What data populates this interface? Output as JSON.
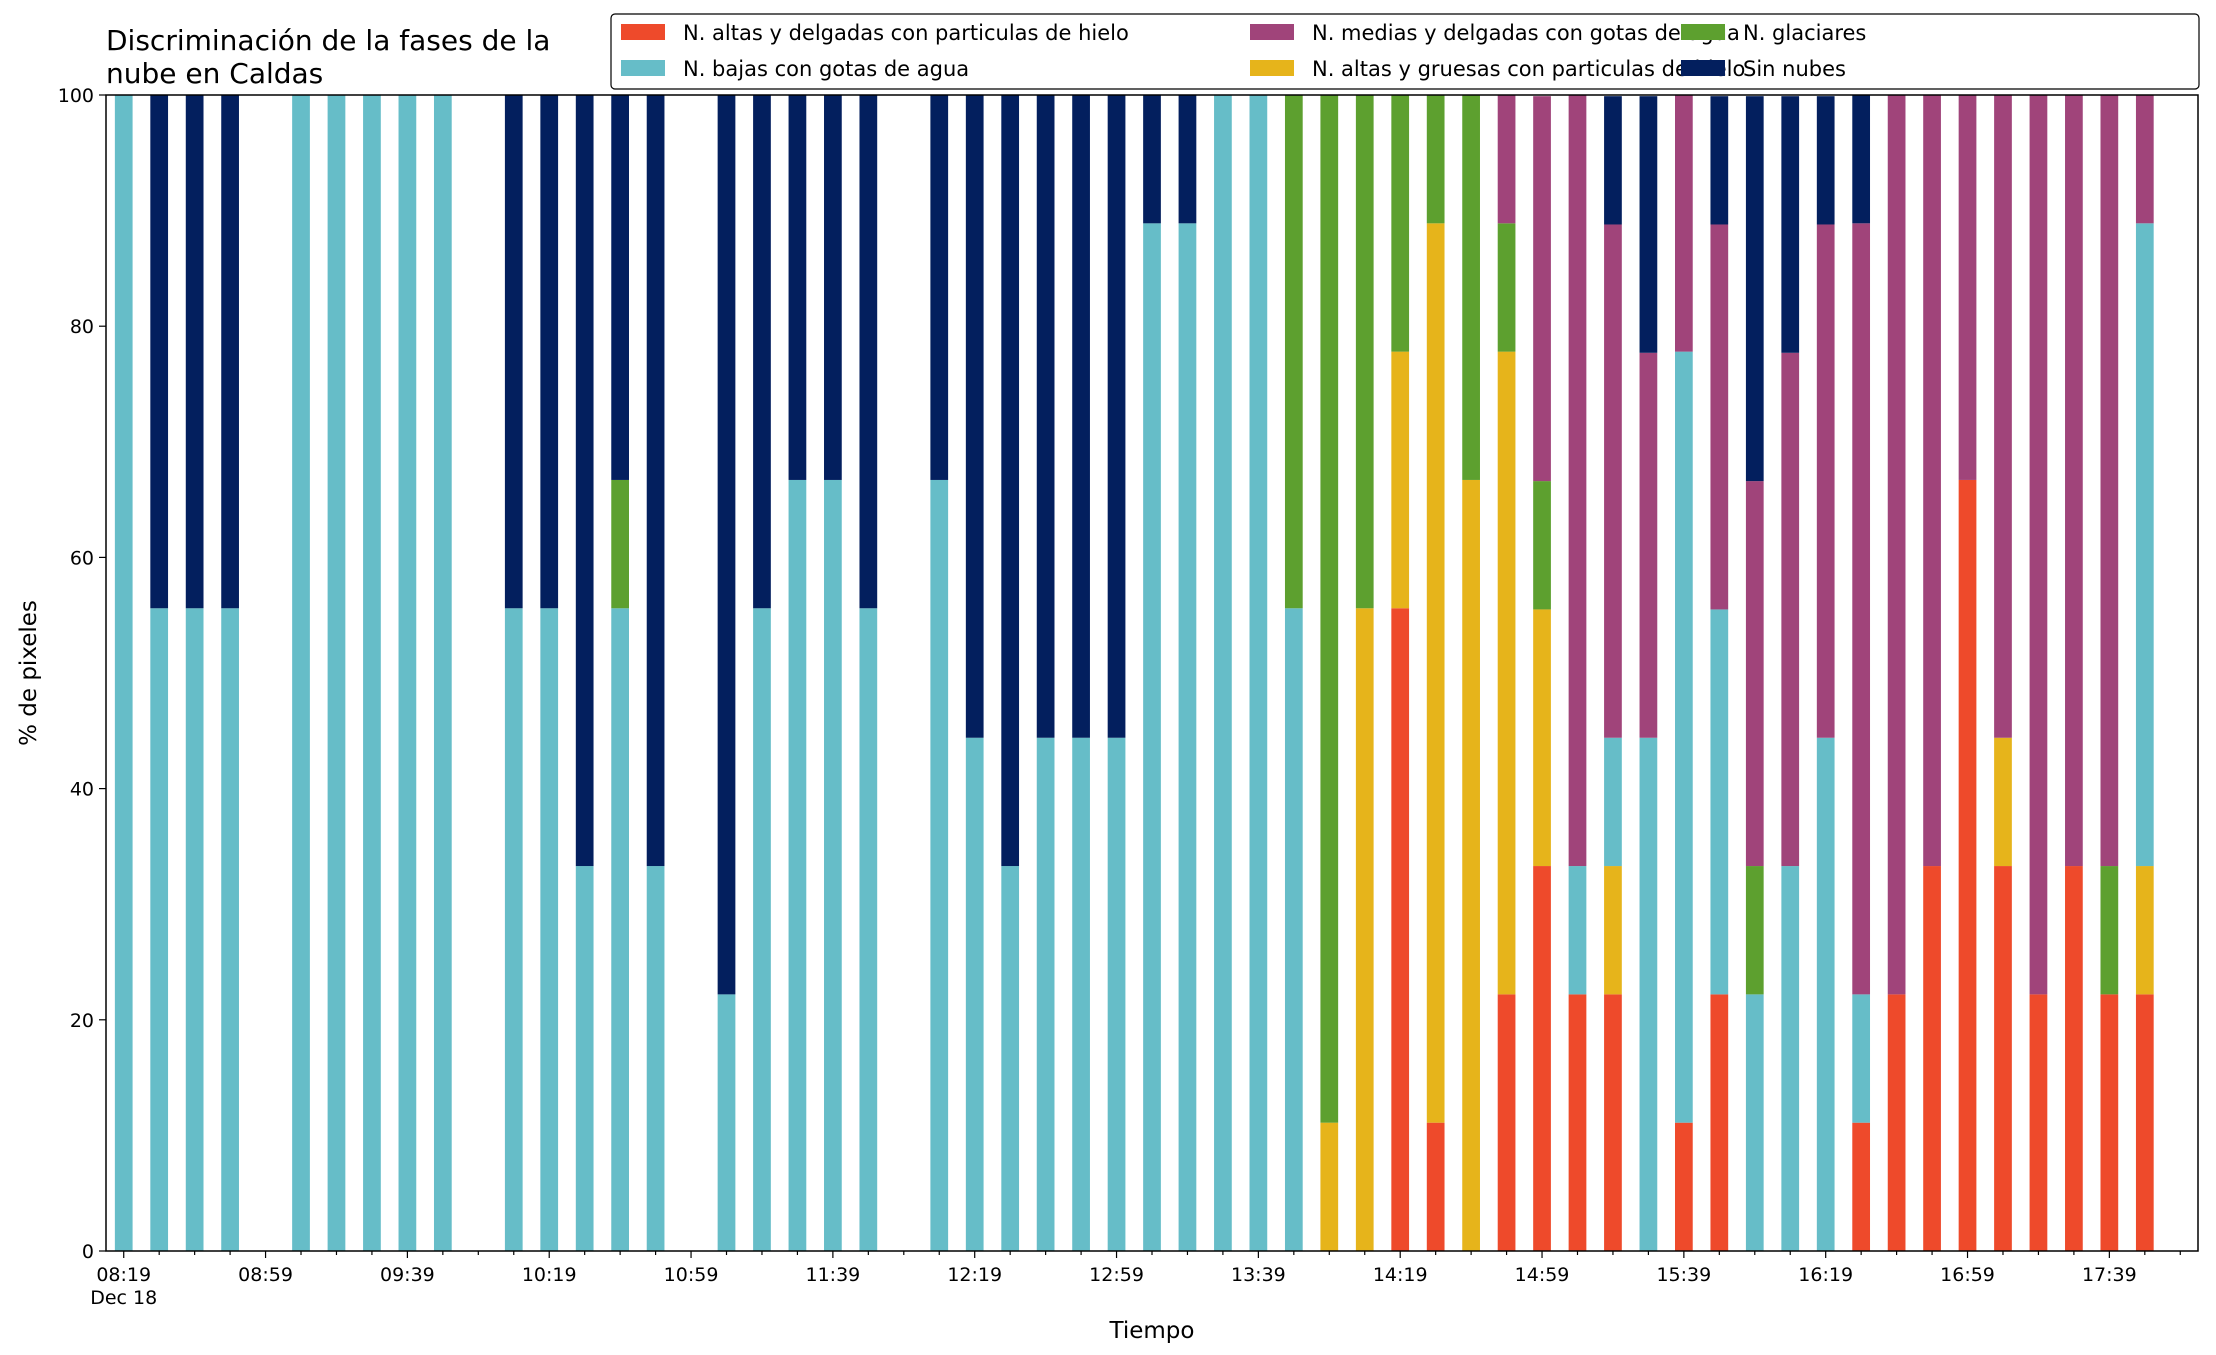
{
  "chart_data": {
    "type": "bar",
    "stacked": true,
    "title_lines": [
      "Discriminación de la fases de la",
      "nube en Caldas"
    ],
    "xlabel": "Tiempo",
    "ylabel": "% de pixeles",
    "ylim": [
      0,
      100
    ],
    "yticks": [
      "0",
      "20",
      "40",
      "60",
      "80",
      "100"
    ],
    "x_start": "08:19",
    "x_step_minutes": 10,
    "x_slots": 59,
    "xtick_labels": [
      {
        "slot": 0,
        "label": "08:19",
        "sublabel": "Dec 18"
      },
      {
        "slot": 4,
        "label": "08:59"
      },
      {
        "slot": 8,
        "label": "09:39"
      },
      {
        "slot": 12,
        "label": "10:19"
      },
      {
        "slot": 16,
        "label": "10:59"
      },
      {
        "slot": 20,
        "label": "11:39"
      },
      {
        "slot": 24,
        "label": "12:19"
      },
      {
        "slot": 28,
        "label": "12:59"
      },
      {
        "slot": 32,
        "label": "13:39"
      },
      {
        "slot": 36,
        "label": "14:19"
      },
      {
        "slot": 40,
        "label": "14:59"
      },
      {
        "slot": 44,
        "label": "15:39"
      },
      {
        "slot": 48,
        "label": "16:19"
      },
      {
        "slot": 52,
        "label": "16:59"
      },
      {
        "slot": 56,
        "label": "17:39"
      }
    ],
    "series": [
      {
        "name": "N. altas y delgadas con particulas de hielo",
        "color": "#ee4a2b"
      },
      {
        "name": "N. altas y gruesas con particulas de hielo",
        "color": "#e6b41b"
      },
      {
        "name": "N. bajas con gotas de agua",
        "color": "#66bdc8"
      },
      {
        "name": "N. glaciares",
        "color": "#5da02f"
      },
      {
        "name": "N. medias y delgadas con gotas de agua",
        "color": "#a0447a"
      },
      {
        "name": "Sin nubes",
        "color": "#031f5e"
      }
    ],
    "legend_order": [
      0,
      2,
      4,
      1,
      3,
      5
    ],
    "legend_position": "top-right",
    "bars": [
      {
        "slot": 0,
        "values": [
          0,
          0,
          100,
          0,
          0,
          0
        ]
      },
      {
        "slot": 1,
        "values": [
          0,
          0,
          55.6,
          0,
          0,
          44.4
        ]
      },
      {
        "slot": 2,
        "values": [
          0,
          0,
          55.6,
          0,
          0,
          44.4
        ]
      },
      {
        "slot": 3,
        "values": [
          0,
          0,
          55.6,
          0,
          0,
          44.4
        ]
      },
      {
        "slot": 5,
        "values": [
          0,
          0,
          100,
          0,
          0,
          0
        ]
      },
      {
        "slot": 6,
        "values": [
          0,
          0,
          100,
          0,
          0,
          0
        ]
      },
      {
        "slot": 7,
        "values": [
          0,
          0,
          100,
          0,
          0,
          0
        ]
      },
      {
        "slot": 8,
        "values": [
          0,
          0,
          100,
          0,
          0,
          0
        ]
      },
      {
        "slot": 9,
        "values": [
          0,
          0,
          100,
          0,
          0,
          0
        ]
      },
      {
        "slot": 11,
        "values": [
          0,
          0,
          55.6,
          0,
          0,
          44.4
        ]
      },
      {
        "slot": 12,
        "values": [
          0,
          0,
          55.6,
          0,
          0,
          44.4
        ]
      },
      {
        "slot": 13,
        "values": [
          0,
          0,
          33.3,
          0,
          0,
          66.7
        ]
      },
      {
        "slot": 14,
        "values": [
          0,
          0,
          55.6,
          11.1,
          0,
          33.3
        ]
      },
      {
        "slot": 15,
        "values": [
          0,
          0,
          33.3,
          0,
          0,
          66.7
        ]
      },
      {
        "slot": 17,
        "values": [
          0,
          0,
          22.2,
          0,
          0,
          77.8
        ]
      },
      {
        "slot": 18,
        "values": [
          0,
          0,
          55.6,
          0,
          0,
          44.4
        ]
      },
      {
        "slot": 19,
        "values": [
          0,
          0,
          66.7,
          0,
          0,
          33.3
        ]
      },
      {
        "slot": 20,
        "values": [
          0,
          0,
          66.7,
          0,
          0,
          33.3
        ]
      },
      {
        "slot": 21,
        "values": [
          0,
          0,
          55.6,
          0,
          0,
          44.4
        ]
      },
      {
        "slot": 23,
        "values": [
          0,
          0,
          66.7,
          0,
          0,
          33.3
        ]
      },
      {
        "slot": 24,
        "values": [
          0,
          0,
          44.4,
          0,
          0,
          55.6
        ]
      },
      {
        "slot": 25,
        "values": [
          0,
          0,
          33.3,
          0,
          0,
          66.7
        ]
      },
      {
        "slot": 26,
        "values": [
          0,
          0,
          44.4,
          0,
          0,
          55.6
        ]
      },
      {
        "slot": 27,
        "values": [
          0,
          0,
          44.4,
          0,
          0,
          55.6
        ]
      },
      {
        "slot": 28,
        "values": [
          0,
          0,
          44.4,
          0,
          0,
          55.6
        ]
      },
      {
        "slot": 29,
        "values": [
          0,
          0,
          88.9,
          0,
          0,
          11.1
        ]
      },
      {
        "slot": 30,
        "values": [
          0,
          0,
          88.9,
          0,
          0,
          11.1
        ]
      },
      {
        "slot": 31,
        "values": [
          0,
          0,
          100,
          0,
          0,
          0
        ]
      },
      {
        "slot": 32,
        "values": [
          0,
          0,
          100,
          0,
          0,
          0
        ]
      },
      {
        "slot": 33,
        "values": [
          0,
          0,
          55.6,
          44.4,
          0,
          0
        ]
      },
      {
        "slot": 34,
        "values": [
          0,
          11.1,
          0,
          88.9,
          0,
          0
        ]
      },
      {
        "slot": 35,
        "values": [
          0,
          55.6,
          0,
          44.4,
          0,
          0
        ]
      },
      {
        "slot": 36,
        "values": [
          55.6,
          22.2,
          0,
          22.2,
          0,
          0
        ]
      },
      {
        "slot": 37,
        "values": [
          11.1,
          77.8,
          0,
          11.1,
          0,
          0
        ]
      },
      {
        "slot": 38,
        "values": [
          0,
          66.7,
          0,
          33.3,
          0,
          0
        ]
      },
      {
        "slot": 39,
        "values": [
          22.2,
          55.6,
          0,
          11.1,
          11.1,
          0
        ]
      },
      {
        "slot": 40,
        "values": [
          33.3,
          22.2,
          0,
          11.1,
          33.3,
          0
        ]
      },
      {
        "slot": 41,
        "values": [
          22.2,
          0,
          11.1,
          0,
          66.7,
          0
        ]
      },
      {
        "slot": 42,
        "values": [
          22.2,
          11.1,
          11.1,
          0,
          44.4,
          11.1
        ]
      },
      {
        "slot": 43,
        "values": [
          0,
          0,
          44.4,
          0,
          33.3,
          22.2
        ]
      },
      {
        "slot": 44,
        "values": [
          11.1,
          0,
          66.7,
          0,
          22.2,
          0
        ]
      },
      {
        "slot": 45,
        "values": [
          22.2,
          0,
          33.3,
          0,
          33.3,
          11.1
        ]
      },
      {
        "slot": 46,
        "values": [
          0,
          0,
          22.2,
          11.1,
          33.3,
          33.3
        ]
      },
      {
        "slot": 47,
        "values": [
          0,
          0,
          33.3,
          0,
          44.4,
          22.2
        ]
      },
      {
        "slot": 48,
        "values": [
          0,
          0,
          44.4,
          0,
          44.4,
          11.1
        ]
      },
      {
        "slot": 49,
        "values": [
          11.1,
          0,
          11.1,
          0,
          66.7,
          11.1
        ]
      },
      {
        "slot": 50,
        "values": [
          22.2,
          0,
          0,
          0,
          77.8,
          0
        ]
      },
      {
        "slot": 51,
        "values": [
          33.3,
          0,
          0,
          0,
          66.7,
          0
        ]
      },
      {
        "slot": 52,
        "values": [
          66.7,
          0,
          0,
          0,
          33.3,
          0
        ]
      },
      {
        "slot": 53,
        "values": [
          33.3,
          11.1,
          0,
          0,
          55.6,
          0
        ]
      },
      {
        "slot": 54,
        "values": [
          22.2,
          0,
          0,
          0,
          77.8,
          0
        ]
      },
      {
        "slot": 55,
        "values": [
          33.3,
          0,
          0,
          0,
          66.7,
          0
        ]
      },
      {
        "slot": 56,
        "values": [
          22.2,
          0,
          0,
          11.1,
          66.7,
          0
        ]
      },
      {
        "slot": 57,
        "values": [
          22.2,
          11.1,
          55.6,
          0,
          11.1,
          0
        ]
      }
    ]
  }
}
